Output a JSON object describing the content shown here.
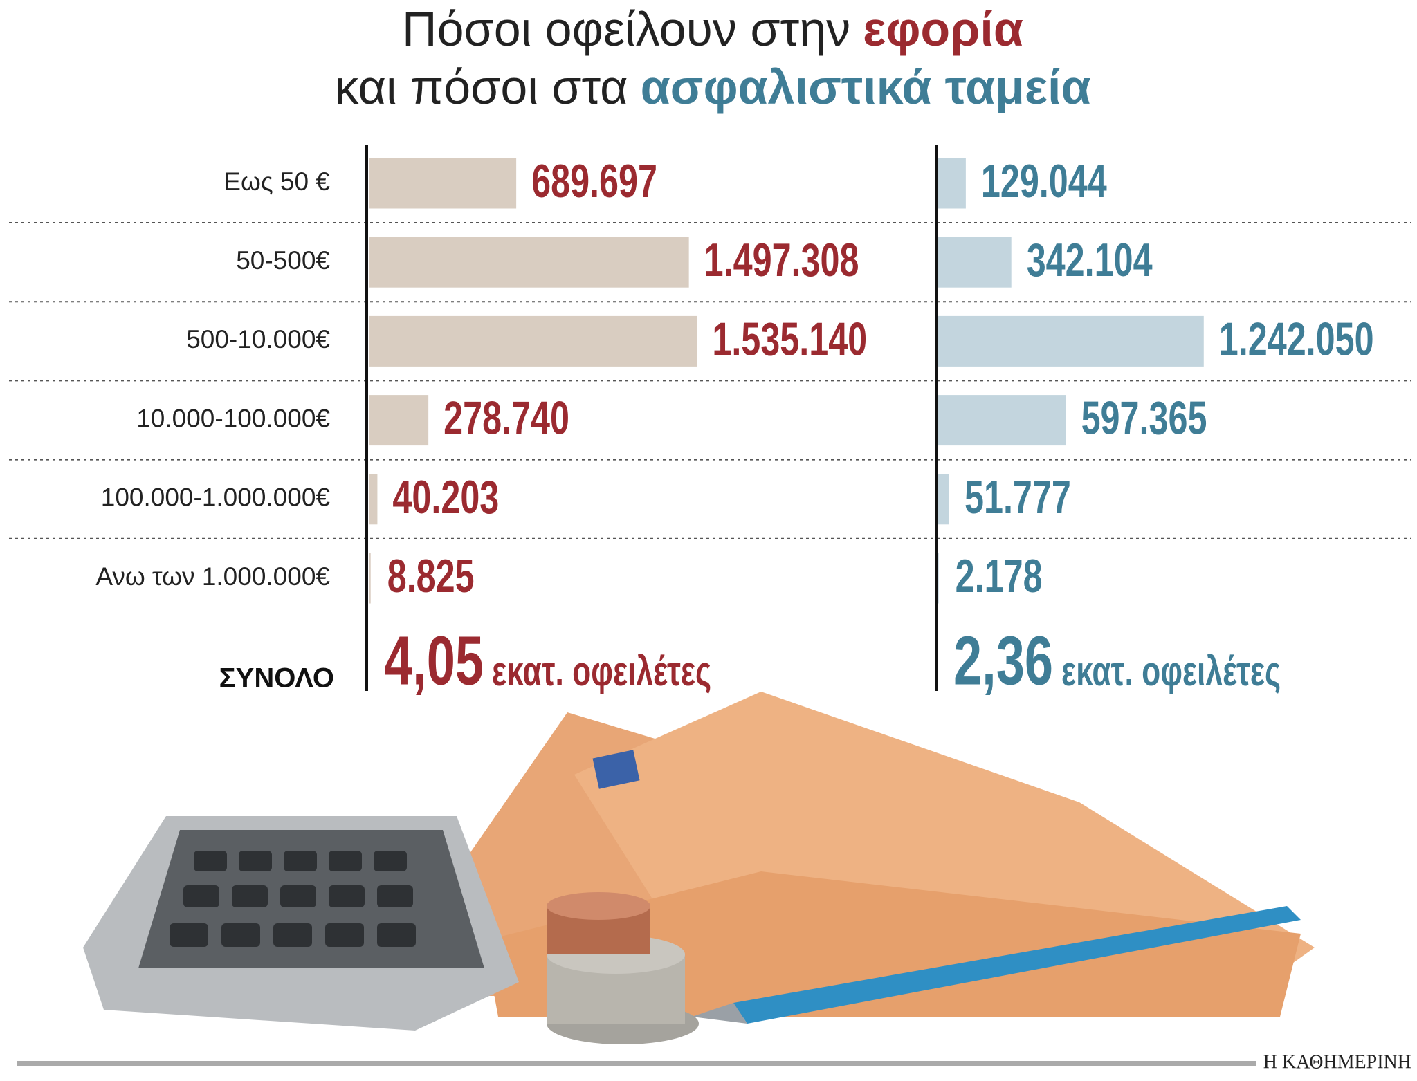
{
  "chart_data": {
    "type": "bar",
    "title": {
      "line1": "Πόσοι οφείλουν στην",
      "line1_highlight": "εφορία",
      "line2": "και πόσοι στα",
      "line2_highlight": "ασφαλιστικά ταμεία"
    },
    "categories": [
      "Εως 50 €",
      "50-500€",
      "500-10.000€",
      "10.000-100.000€",
      "100.000-1.000.000€",
      "Ανω των 1.000.000€"
    ],
    "series": [
      {
        "color": "#9b2a30",
        "bar_color": "#d9cdc1",
        "values": [
          689697,
          1497308,
          1535140,
          278740,
          40203,
          8825
        ],
        "value_labels": [
          "689.697",
          "1.497.308",
          "1.535.140",
          "278.740",
          "40.203",
          "8.825"
        ],
        "total": "4,05",
        "total_unit": "εκατ. οφειλέτες"
      },
      {
        "color": "#3f7d96",
        "bar_color": "#c3d5de",
        "values": [
          129044,
          342104,
          1242050,
          597365,
          51777,
          2178
        ],
        "value_labels": [
          "129.044",
          "342.104",
          "1.242.050",
          "597.365",
          "51.777",
          "2.178"
        ],
        "total": "2,36",
        "total_unit": "εκατ. οφειλέτες"
      }
    ],
    "total_label": "ΣΥΝΟΛΟ",
    "xlim": [
      0,
      2000000
    ],
    "source": "Η ΚΑΘΗΜΕΡΙΝΗ"
  }
}
